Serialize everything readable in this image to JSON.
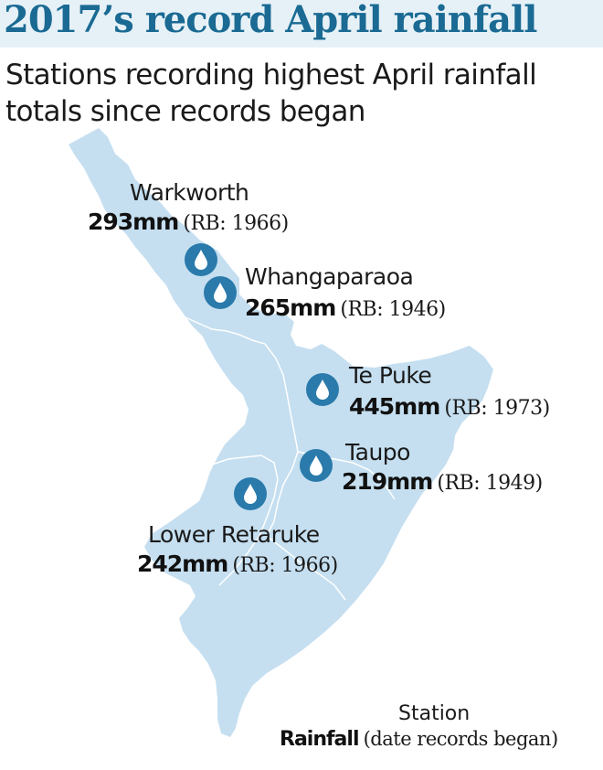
{
  "title": "2017’s record April rainfall",
  "subtitle": "Stations recording highest April rainfall totals since records began",
  "colors": {
    "land": "#c5dff0",
    "boundary": "#ffffff",
    "marker": "#2a7aab",
    "title_text": "#1a6a93",
    "title_band": "#e6f1f7"
  },
  "marker_icon": "raindrop-icon",
  "stations": [
    {
      "id": "warkworth",
      "name": "Warkworth",
      "rainfall": "293mm",
      "records": "(RB: 1966)"
    },
    {
      "id": "whangaparaoa",
      "name": "Whangaparaoa",
      "rainfall": "265mm",
      "records": "(RB: 1946)"
    },
    {
      "id": "te-puke",
      "name": "Te Puke",
      "rainfall": "445mm",
      "records": "(RB: 1973)"
    },
    {
      "id": "taupo",
      "name": "Taupo",
      "rainfall": "219mm",
      "records": "(RB: 1949)"
    },
    {
      "id": "lower-retaruke",
      "name": "Lower Retaruke",
      "rainfall": "242mm",
      "records": "(RB: 1966)"
    }
  ],
  "legend": {
    "station": "Station",
    "rainfall": "Rainfall",
    "records": "(date records began)"
  }
}
